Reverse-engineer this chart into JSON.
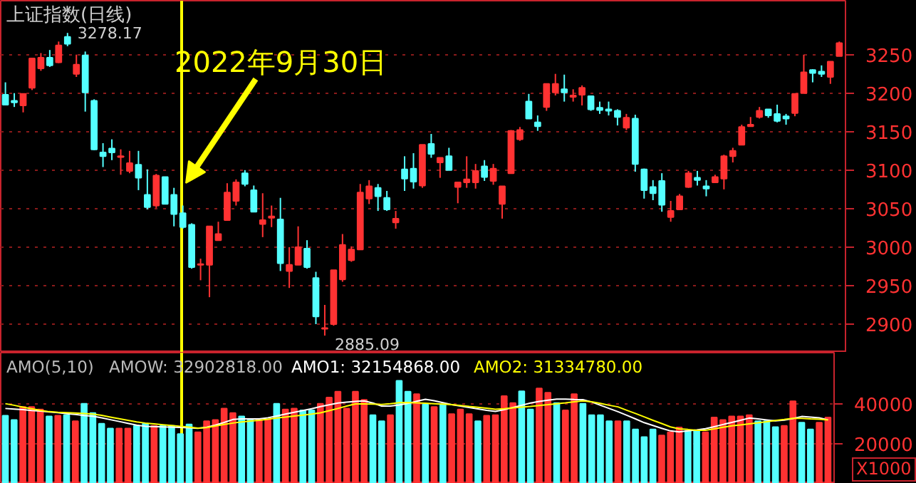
{
  "chart_data": [
    {
      "type": "candlestick",
      "title": "上证指数(日线)",
      "categories": [
        null,
        null,
        null,
        null,
        null,
        null,
        null,
        null,
        null,
        null,
        null,
        null,
        null,
        null,
        null,
        null,
        null,
        null,
        null,
        null,
        null,
        null,
        null,
        null,
        null,
        null,
        null,
        null,
        null,
        null,
        null,
        null,
        null,
        null,
        null,
        null,
        null,
        null,
        null,
        null,
        null,
        null,
        null,
        null,
        null,
        null,
        null,
        null,
        null,
        null,
        null,
        null,
        null,
        null,
        null,
        null,
        null,
        null,
        null,
        null,
        null,
        null,
        null,
        null,
        null,
        null,
        null,
        null,
        null,
        null,
        null,
        null,
        null,
        null,
        null,
        null,
        null,
        null,
        null,
        null,
        null,
        null,
        null,
        null,
        null,
        null,
        null,
        null,
        null,
        null,
        null,
        null,
        null,
        null,
        null
      ],
      "ohlc": [
        [
          3198,
          3214,
          3184,
          3185
        ],
        [
          3190,
          3200,
          3182,
          3188
        ],
        [
          3184,
          3199,
          3175,
          3199
        ],
        [
          3207,
          3245,
          3204,
          3245
        ],
        [
          3232,
          3252,
          3229,
          3246
        ],
        [
          3246,
          3256,
          3234,
          3236
        ],
        [
          3240,
          3267,
          3239,
          3262
        ],
        [
          3273,
          3278.17,
          3261,
          3264
        ],
        [
          3225,
          3250,
          3221,
          3237
        ],
        [
          3249,
          3254,
          3176,
          3201
        ],
        [
          3190,
          3192,
          3126,
          3127
        ],
        [
          3123,
          3135,
          3104,
          3118
        ],
        [
          3128,
          3140,
          3113,
          3123
        ],
        [
          3117,
          3127,
          3094,
          3118
        ],
        [
          3099,
          3125,
          3096,
          3109
        ],
        [
          3107,
          3125,
          3074,
          3090
        ],
        [
          3068,
          3101,
          3049,
          3052
        ],
        [
          3054,
          3095,
          3051,
          3093
        ],
        [
          3091,
          3091,
          3056,
          3056
        ],
        [
          3068,
          3077,
          3027,
          3043
        ],
        [
          3044,
          3054,
          3024,
          3026
        ],
        [
          3029,
          3031,
          2972,
          2974
        ],
        [
          2977,
          2985,
          2957,
          2978
        ],
        [
          2977,
          3027,
          2935,
          3027
        ],
        [
          3009,
          3033,
          3009,
          3017
        ],
        [
          3035,
          3083,
          3035,
          3071
        ],
        [
          3060,
          3088,
          3054,
          3084
        ],
        [
          3096,
          3100,
          3079,
          3082
        ],
        [
          3074,
          3080,
          3046,
          3046
        ],
        [
          3030,
          3070,
          3013,
          3035
        ],
        [
          3038,
          3054,
          3026,
          3040
        ],
        [
          3036,
          3064,
          2969,
          2979
        ],
        [
          2969,
          3000,
          2947,
          2977
        ],
        [
          2977,
          3027,
          2977,
          3000
        ],
        [
          2998,
          3009,
          2972,
          2974
        ],
        [
          2960,
          2968,
          2900,
          2910
        ],
        [
          2894,
          2925,
          2885.09,
          2895
        ],
        [
          2900,
          2970,
          2898,
          2970
        ],
        [
          2958,
          3017,
          2955,
          3003
        ],
        [
          2983,
          3001,
          2981,
          2997
        ],
        [
          2997,
          3082,
          2997,
          3071
        ],
        [
          3063,
          3087,
          3056,
          3079
        ],
        [
          3077,
          3082,
          3047,
          3066
        ],
        [
          3064,
          3073,
          3047,
          3049
        ],
        [
          3032,
          3047,
          3024,
          3037
        ],
        [
          3101,
          3118,
          3073,
          3089
        ],
        [
          3102,
          3122,
          3076,
          3085
        ],
        [
          3080,
          3133,
          3077,
          3133
        ],
        [
          3134,
          3147,
          3116,
          3121
        ],
        [
          3110,
          3116,
          3090,
          3116
        ],
        [
          3118,
          3129,
          3100,
          3100
        ],
        [
          3078,
          3084,
          3057,
          3084
        ],
        [
          3084,
          3118,
          3077,
          3088
        ],
        [
          3084,
          3108,
          3076,
          3099
        ],
        [
          3105,
          3113,
          3086,
          3091
        ],
        [
          3086,
          3108,
          3081,
          3102
        ],
        [
          3056,
          3079,
          3037,
          3079
        ],
        [
          3096,
          3152,
          3096,
          3151
        ],
        [
          3140,
          3156,
          3138,
          3152
        ],
        [
          3189,
          3199,
          3167,
          3167
        ],
        [
          3162,
          3171,
          3151,
          3157
        ],
        [
          3182,
          3212,
          3177,
          3212
        ],
        [
          3201,
          3225,
          3197,
          3212
        ],
        [
          3205,
          3224,
          3189,
          3201
        ],
        [
          3195,
          3205,
          3189,
          3197
        ],
        [
          3198,
          3210,
          3184,
          3207
        ],
        [
          3196,
          3196,
          3177,
          3179
        ],
        [
          3181,
          3189,
          3173,
          3178
        ],
        [
          3179,
          3189,
          3171,
          3177
        ],
        [
          3177,
          3179,
          3158,
          3169
        ],
        [
          3155,
          3173,
          3152,
          3168
        ],
        [
          3167,
          3172,
          3098,
          3108
        ],
        [
          3101,
          3102,
          3063,
          3074
        ],
        [
          3078,
          3087,
          3061,
          3070
        ],
        [
          3086,
          3096,
          3046,
          3055
        ],
        [
          3039,
          3060,
          3033,
          3047
        ],
        [
          3049,
          3069,
          3049,
          3066
        ],
        [
          3078,
          3099,
          3077,
          3096
        ],
        [
          3090,
          3099,
          3080,
          3087
        ],
        [
          3079,
          3087,
          3066,
          3076
        ],
        [
          3084,
          3094,
          3084,
          3091
        ],
        [
          3089,
          3120,
          3075,
          3118
        ],
        [
          3118,
          3129,
          3110,
          3125
        ],
        [
          3133,
          3159,
          3133,
          3156
        ],
        [
          3157,
          3169,
          3157,
          3159
        ],
        [
          3169,
          3182,
          3167,
          3177
        ],
        [
          3179,
          3179,
          3168,
          3171
        ],
        [
          3173,
          3185,
          3162,
          3164
        ],
        [
          3170,
          3173,
          3159,
          3167
        ],
        [
          3174,
          3199,
          3170,
          3199
        ],
        [
          3200,
          3250,
          3200,
          3227
        ],
        [
          3230,
          3231,
          3214,
          3226
        ],
        [
          3228,
          3236,
          3221,
          3225
        ],
        [
          3221,
          3241,
          3212,
          3241
        ],
        [
          3248,
          3267,
          3248,
          3265
        ]
      ],
      "colors": [
        "#54ffff",
        "#54ffff",
        "#ff3232",
        "#ff3232",
        "#ff3232",
        "#54ffff",
        "#ff3232",
        "#54ffff",
        "#ff3232",
        "#54ffff",
        "#54ffff",
        "#54ffff",
        "#54ffff",
        "#ff3232",
        "#ff3232",
        "#54ffff",
        "#54ffff",
        "#ff3232",
        "#54ffff",
        "#54ffff",
        "#54ffff",
        "#54ffff",
        "#ff3232",
        "#ff3232",
        "#ff3232",
        "#ff3232",
        "#ff3232",
        "#54ffff",
        "#54ffff",
        "#ff3232",
        "#ff3232",
        "#54ffff",
        "#ff3232",
        "#ff3232",
        "#54ffff",
        "#54ffff",
        "#ff3232",
        "#ff3232",
        "#ff3232",
        "#ff3232",
        "#ff3232",
        "#ff3232",
        "#54ffff",
        "#54ffff",
        "#ff3232",
        "#54ffff",
        "#54ffff",
        "#ff3232",
        "#54ffff",
        "#ff3232",
        "#54ffff",
        "#ff3232",
        "#ff3232",
        "#ff3232",
        "#54ffff",
        "#ff3232",
        "#ff3232",
        "#ff3232",
        "#ff3232",
        "#54ffff",
        "#54ffff",
        "#ff3232",
        "#ff3232",
        "#54ffff",
        "#ff3232",
        "#ff3232",
        "#54ffff",
        "#54ffff",
        "#54ffff",
        "#54ffff",
        "#ff3232",
        "#54ffff",
        "#54ffff",
        "#54ffff",
        "#54ffff",
        "#ff3232",
        "#ff3232",
        "#ff3232",
        "#54ffff",
        "#54ffff",
        "#ff3232",
        "#ff3232",
        "#ff3232",
        "#ff3232",
        "#ff3232",
        "#ff3232",
        "#54ffff",
        "#54ffff",
        "#54ffff",
        "#ff3232",
        "#ff3232",
        "#54ffff",
        "#54ffff",
        "#ff3232",
        "#ff3232"
      ],
      "ylim": [
        2863,
        3320
      ],
      "yticks": [
        2900,
        2950,
        3000,
        3050,
        3100,
        3150,
        3200,
        3250
      ],
      "tick_labels": "y",
      "grid": "y",
      "annotations": [
        "3278.17",
        "2885.09",
        "2022年9月30日"
      ]
    },
    {
      "type": "bar",
      "categories": [
        null,
        null,
        null,
        null,
        null,
        null,
        null,
        null,
        null,
        null,
        null,
        null,
        null,
        null,
        null,
        null,
        null,
        null,
        null,
        null,
        null,
        null,
        null,
        null,
        null,
        null,
        null,
        null,
        null,
        null,
        null,
        null,
        null,
        null,
        null,
        null,
        null,
        null,
        null,
        null,
        null,
        null,
        null,
        null,
        null,
        null,
        null,
        null,
        null,
        null,
        null,
        null,
        null,
        null,
        null,
        null,
        null,
        null,
        null,
        null,
        null,
        null,
        null,
        null,
        null,
        null,
        null,
        null,
        null,
        null,
        null,
        null,
        null,
        null,
        null,
        null,
        null,
        null,
        null,
        null,
        null,
        null,
        null,
        null,
        null,
        null,
        null,
        null,
        null,
        null,
        null,
        null,
        null,
        null,
        null
      ],
      "series": [
        {
          "type": "bar",
          "values": [
            34000,
            31900,
            38400,
            38400,
            37100,
            33600,
            34000,
            34300,
            31200,
            40000,
            35300,
            30000,
            27600,
            27600,
            27600,
            28900,
            30000,
            28900,
            28900,
            28900,
            24800,
            29600,
            25700,
            31200,
            31900,
            37600,
            35300,
            33600,
            31900,
            31900,
            31900,
            40000,
            37100,
            37600,
            36700,
            36700,
            40000,
            43100,
            46000,
            37600,
            46000,
            41900,
            34300,
            31200,
            34300,
            51400,
            46000,
            44800,
            39600,
            38400,
            39600,
            34800,
            37100,
            34800,
            31200,
            34000,
            34300,
            43800,
            40300,
            46200,
            37100,
            47600,
            45500,
            40300,
            36700,
            44800,
            40000,
            34300,
            34300,
            31200,
            31200,
            31200,
            27100,
            23300,
            27100,
            24100,
            25700,
            28100,
            26400,
            26400,
            25700,
            33100,
            31900,
            33600,
            33600,
            34300,
            31200,
            31200,
            28300,
            28900,
            41200,
            30500,
            27100,
            30500,
            33100
          ],
          "colors": [
            "#54ffff",
            "#54ffff",
            "#ff3232",
            "#ff3232",
            "#ff3232",
            "#54ffff",
            "#ff3232",
            "#54ffff",
            "#ff3232",
            "#54ffff",
            "#54ffff",
            "#54ffff",
            "#54ffff",
            "#ff3232",
            "#ff3232",
            "#54ffff",
            "#54ffff",
            "#ff3232",
            "#54ffff",
            "#54ffff",
            "#54ffff",
            "#54ffff",
            "#ff3232",
            "#ff3232",
            "#ff3232",
            "#ff3232",
            "#ff3232",
            "#54ffff",
            "#54ffff",
            "#ff3232",
            "#ff3232",
            "#54ffff",
            "#ff3232",
            "#ff3232",
            "#54ffff",
            "#54ffff",
            "#ff3232",
            "#ff3232",
            "#ff3232",
            "#ff3232",
            "#ff3232",
            "#ff3232",
            "#54ffff",
            "#54ffff",
            "#ff3232",
            "#54ffff",
            "#54ffff",
            "#ff3232",
            "#54ffff",
            "#ff3232",
            "#54ffff",
            "#ff3232",
            "#ff3232",
            "#ff3232",
            "#54ffff",
            "#ff3232",
            "#ff3232",
            "#ff3232",
            "#ff3232",
            "#54ffff",
            "#54ffff",
            "#ff3232",
            "#ff3232",
            "#54ffff",
            "#ff3232",
            "#ff3232",
            "#54ffff",
            "#54ffff",
            "#54ffff",
            "#54ffff",
            "#ff3232",
            "#54ffff",
            "#54ffff",
            "#54ffff",
            "#54ffff",
            "#ff3232",
            "#ff3232",
            "#ff3232",
            "#54ffff",
            "#54ffff",
            "#ff3232",
            "#ff3232",
            "#ff3232",
            "#ff3232",
            "#ff3232",
            "#ff3232",
            "#54ffff",
            "#54ffff",
            "#54ffff",
            "#ff3232",
            "#ff3232",
            "#54ffff",
            "#54ffff",
            "#ff3232",
            "#ff3232"
          ]
        },
        {
          "type": "line",
          "color": "#ffffff",
          "values": [
            37600,
            37300,
            37000,
            36600,
            36300,
            35900,
            35500,
            35000,
            34600,
            34100,
            33700,
            32900,
            32000,
            31100,
            30200,
            29300,
            28700,
            28600,
            28400,
            28300,
            28100,
            27900,
            27700,
            28200,
            29300,
            30600,
            32100,
            32400,
            32400,
            32400,
            32900,
            33800,
            34800,
            35700,
            36600,
            37500,
            38500,
            39400,
            40300,
            40800,
            41100,
            41400,
            40300,
            38800,
            38800,
            39300,
            40100,
            41200,
            42200,
            41500,
            40500,
            39500,
            38800,
            38100,
            37400,
            36700,
            36100,
            37000,
            38100,
            39200,
            40300,
            41100,
            41700,
            42300,
            42300,
            42100,
            42000,
            40800,
            39200,
            37600,
            36000,
            34200,
            32400,
            30500,
            29100,
            27700,
            26400,
            25900,
            26400,
            26900,
            27500,
            28500,
            29600,
            30600,
            31700,
            32800,
            32400,
            31900,
            31400,
            31800,
            32600,
            33600,
            33300,
            32900,
            31900
          ]
        },
        {
          "type": "line",
          "color": "#ffff00",
          "values": [
            40000,
            39200,
            38300,
            37500,
            36700,
            36000,
            35700,
            35500,
            35300,
            35100,
            34800,
            34200,
            33300,
            32500,
            31700,
            30900,
            30300,
            29900,
            29500,
            29100,
            28700,
            28300,
            27800,
            28000,
            28800,
            29600,
            30300,
            30900,
            31300,
            31700,
            32200,
            32800,
            33300,
            33800,
            34300,
            34800,
            35400,
            36500,
            37600,
            38800,
            39900,
            39900,
            39800,
            39600,
            40000,
            40500,
            40600,
            40400,
            40200,
            40000,
            39800,
            39500,
            39100,
            38600,
            38200,
            37700,
            37200,
            37500,
            37900,
            38300,
            38600,
            39100,
            39500,
            40000,
            40400,
            40900,
            41400,
            40900,
            40100,
            39200,
            38400,
            36700,
            35100,
            33400,
            31700,
            30100,
            28400,
            27400,
            27100,
            26700,
            26700,
            27400,
            28200,
            28900,
            29400,
            29900,
            30400,
            31000,
            31600,
            32100,
            32700,
            32700,
            32400,
            32200,
            31900
          ]
        }
      ],
      "ylim": [
        0,
        65500
      ],
      "yticks": [
        20000,
        40000
      ],
      "tick_labels": "y",
      "grid": "y",
      "annotations": [
        "AMO(5,10)",
        "AMOW: 32902818.00",
        "AMO1: 32154868.00",
        "AMO2: 31334780.00",
        "X1000"
      ]
    }
  ]
}
